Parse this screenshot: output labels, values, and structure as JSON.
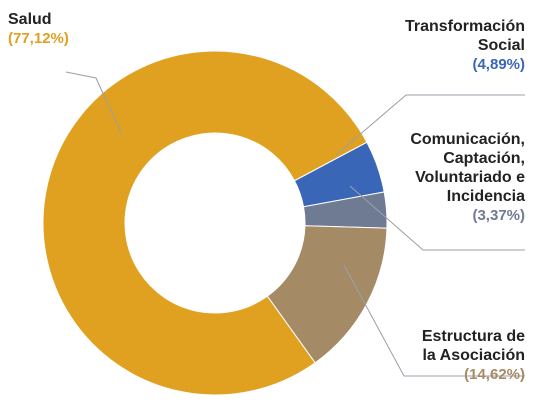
{
  "chart_data": {
    "type": "pie",
    "donut": true,
    "title": "",
    "slices": [
      {
        "name": "Salud",
        "value": 77.12,
        "label": "(77,12%)",
        "color": "#E0A020"
      },
      {
        "name": "Transformación Social",
        "value": 4.89,
        "label": "(4,89%)",
        "color": "#3A66B8"
      },
      {
        "name": "Comunicación, Captación, Voluntariado e Incidencia",
        "value": 3.37,
        "label": "(3,37%)",
        "color": "#6F7A93"
      },
      {
        "name": "Estructura de la Asociación",
        "value": 14.62,
        "label": "(14,62%)",
        "color": "#A58A66"
      }
    ],
    "label_lines": {
      "salud": [
        "Salud"
      ],
      "transformacion": [
        "Transformación",
        "Social"
      ],
      "comunicacion": [
        "Comunicación,",
        "Captación,",
        "Voluntariado e",
        "Incidencia"
      ],
      "estructura": [
        "Estructura de",
        "la Asociación"
      ]
    }
  }
}
